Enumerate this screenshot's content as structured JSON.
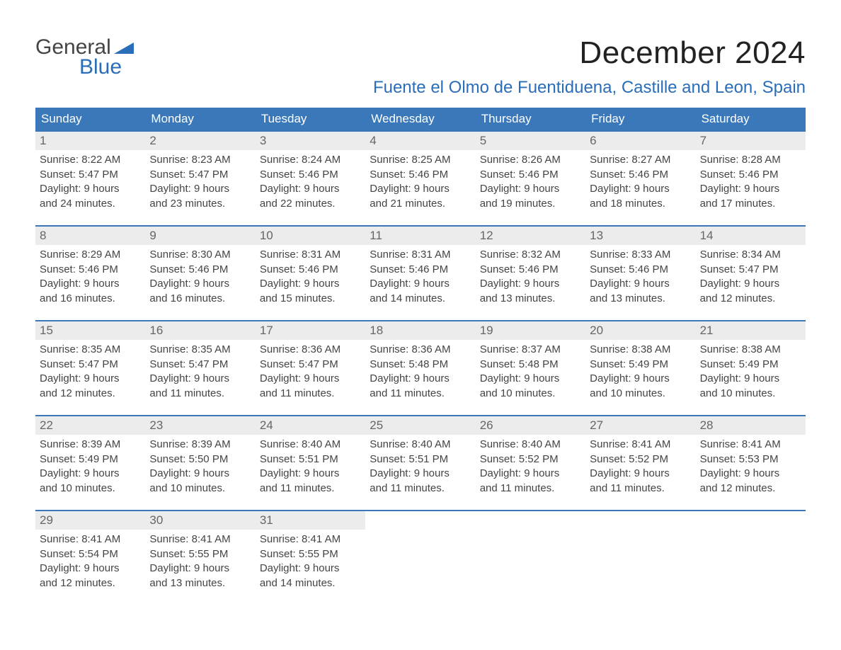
{
  "brand": {
    "word1": "General",
    "word2": "Blue",
    "word1_color": "#444444",
    "word2_color": "#2a6db8",
    "triangle_color": "#2a6db8"
  },
  "header": {
    "month_title": "December 2024",
    "location": "Fuente el Olmo de Fuentiduena, Castille and Leon, Spain",
    "title_color": "#222222",
    "location_color": "#2a6db8"
  },
  "calendar": {
    "header_bg": "#3a78b9",
    "header_fg": "#ffffff",
    "row_border_color": "#3a78b9",
    "daynum_bg": "#ececec",
    "daynum_fg": "#666666",
    "body_fg": "#444444",
    "days_of_week": [
      "Sunday",
      "Monday",
      "Tuesday",
      "Wednesday",
      "Thursday",
      "Friday",
      "Saturday"
    ],
    "labels": {
      "sunrise": "Sunrise:",
      "sunset": "Sunset:",
      "daylight": "Daylight:"
    },
    "weeks": [
      [
        {
          "n": 1,
          "sunrise": "8:22 AM",
          "sunset": "5:47 PM",
          "daylight1": "9 hours",
          "daylight2": "and 24 minutes."
        },
        {
          "n": 2,
          "sunrise": "8:23 AM",
          "sunset": "5:47 PM",
          "daylight1": "9 hours",
          "daylight2": "and 23 minutes."
        },
        {
          "n": 3,
          "sunrise": "8:24 AM",
          "sunset": "5:46 PM",
          "daylight1": "9 hours",
          "daylight2": "and 22 minutes."
        },
        {
          "n": 4,
          "sunrise": "8:25 AM",
          "sunset": "5:46 PM",
          "daylight1": "9 hours",
          "daylight2": "and 21 minutes."
        },
        {
          "n": 5,
          "sunrise": "8:26 AM",
          "sunset": "5:46 PM",
          "daylight1": "9 hours",
          "daylight2": "and 19 minutes."
        },
        {
          "n": 6,
          "sunrise": "8:27 AM",
          "sunset": "5:46 PM",
          "daylight1": "9 hours",
          "daylight2": "and 18 minutes."
        },
        {
          "n": 7,
          "sunrise": "8:28 AM",
          "sunset": "5:46 PM",
          "daylight1": "9 hours",
          "daylight2": "and 17 minutes."
        }
      ],
      [
        {
          "n": 8,
          "sunrise": "8:29 AM",
          "sunset": "5:46 PM",
          "daylight1": "9 hours",
          "daylight2": "and 16 minutes."
        },
        {
          "n": 9,
          "sunrise": "8:30 AM",
          "sunset": "5:46 PM",
          "daylight1": "9 hours",
          "daylight2": "and 16 minutes."
        },
        {
          "n": 10,
          "sunrise": "8:31 AM",
          "sunset": "5:46 PM",
          "daylight1": "9 hours",
          "daylight2": "and 15 minutes."
        },
        {
          "n": 11,
          "sunrise": "8:31 AM",
          "sunset": "5:46 PM",
          "daylight1": "9 hours",
          "daylight2": "and 14 minutes."
        },
        {
          "n": 12,
          "sunrise": "8:32 AM",
          "sunset": "5:46 PM",
          "daylight1": "9 hours",
          "daylight2": "and 13 minutes."
        },
        {
          "n": 13,
          "sunrise": "8:33 AM",
          "sunset": "5:46 PM",
          "daylight1": "9 hours",
          "daylight2": "and 13 minutes."
        },
        {
          "n": 14,
          "sunrise": "8:34 AM",
          "sunset": "5:47 PM",
          "daylight1": "9 hours",
          "daylight2": "and 12 minutes."
        }
      ],
      [
        {
          "n": 15,
          "sunrise": "8:35 AM",
          "sunset": "5:47 PM",
          "daylight1": "9 hours",
          "daylight2": "and 12 minutes."
        },
        {
          "n": 16,
          "sunrise": "8:35 AM",
          "sunset": "5:47 PM",
          "daylight1": "9 hours",
          "daylight2": "and 11 minutes."
        },
        {
          "n": 17,
          "sunrise": "8:36 AM",
          "sunset": "5:47 PM",
          "daylight1": "9 hours",
          "daylight2": "and 11 minutes."
        },
        {
          "n": 18,
          "sunrise": "8:36 AM",
          "sunset": "5:48 PM",
          "daylight1": "9 hours",
          "daylight2": "and 11 minutes."
        },
        {
          "n": 19,
          "sunrise": "8:37 AM",
          "sunset": "5:48 PM",
          "daylight1": "9 hours",
          "daylight2": "and 10 minutes."
        },
        {
          "n": 20,
          "sunrise": "8:38 AM",
          "sunset": "5:49 PM",
          "daylight1": "9 hours",
          "daylight2": "and 10 minutes."
        },
        {
          "n": 21,
          "sunrise": "8:38 AM",
          "sunset": "5:49 PM",
          "daylight1": "9 hours",
          "daylight2": "and 10 minutes."
        }
      ],
      [
        {
          "n": 22,
          "sunrise": "8:39 AM",
          "sunset": "5:49 PM",
          "daylight1": "9 hours",
          "daylight2": "and 10 minutes."
        },
        {
          "n": 23,
          "sunrise": "8:39 AM",
          "sunset": "5:50 PM",
          "daylight1": "9 hours",
          "daylight2": "and 10 minutes."
        },
        {
          "n": 24,
          "sunrise": "8:40 AM",
          "sunset": "5:51 PM",
          "daylight1": "9 hours",
          "daylight2": "and 11 minutes."
        },
        {
          "n": 25,
          "sunrise": "8:40 AM",
          "sunset": "5:51 PM",
          "daylight1": "9 hours",
          "daylight2": "and 11 minutes."
        },
        {
          "n": 26,
          "sunrise": "8:40 AM",
          "sunset": "5:52 PM",
          "daylight1": "9 hours",
          "daylight2": "and 11 minutes."
        },
        {
          "n": 27,
          "sunrise": "8:41 AM",
          "sunset": "5:52 PM",
          "daylight1": "9 hours",
          "daylight2": "and 11 minutes."
        },
        {
          "n": 28,
          "sunrise": "8:41 AM",
          "sunset": "5:53 PM",
          "daylight1": "9 hours",
          "daylight2": "and 12 minutes."
        }
      ],
      [
        {
          "n": 29,
          "sunrise": "8:41 AM",
          "sunset": "5:54 PM",
          "daylight1": "9 hours",
          "daylight2": "and 12 minutes."
        },
        {
          "n": 30,
          "sunrise": "8:41 AM",
          "sunset": "5:55 PM",
          "daylight1": "9 hours",
          "daylight2": "and 13 minutes."
        },
        {
          "n": 31,
          "sunrise": "8:41 AM",
          "sunset": "5:55 PM",
          "daylight1": "9 hours",
          "daylight2": "and 14 minutes."
        },
        null,
        null,
        null,
        null
      ]
    ]
  }
}
